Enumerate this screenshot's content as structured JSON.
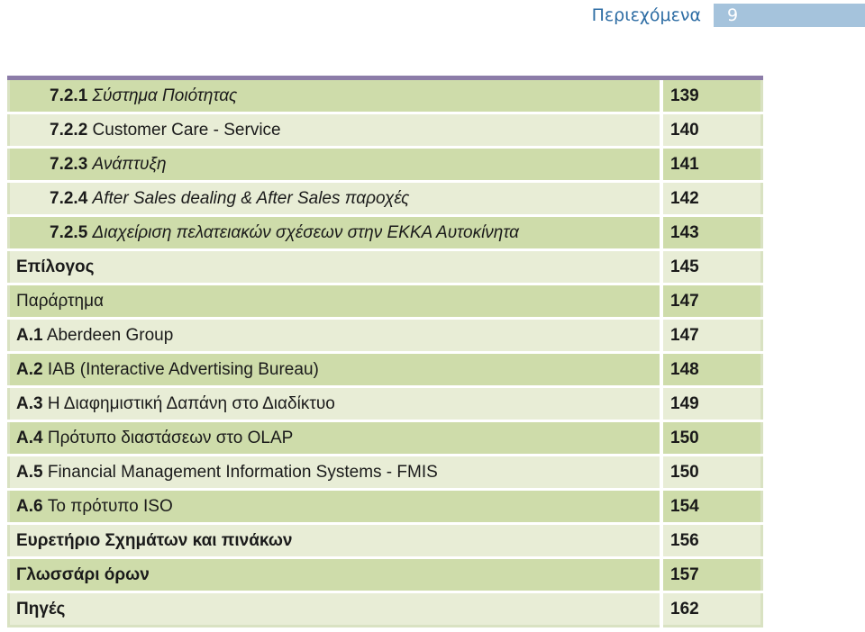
{
  "header": {
    "title": "Περιεχόμενα",
    "page_number": "9",
    "title_color": "#2e6da4",
    "page_box_color": "#a5c3dc"
  },
  "colors": {
    "row_dark": "#cedcaa",
    "row_light": "#e8edd6",
    "table_top_border": "#8c7ca8"
  },
  "toc": [
    {
      "num": "7.2.1",
      "title": "Σύστημα Ποιότητας",
      "page": "139",
      "level": "sub",
      "italic": true
    },
    {
      "num": "7.2.2",
      "title": "Customer Care - Service",
      "page": "140",
      "level": "sub",
      "italic": false
    },
    {
      "num": "7.2.3",
      "title": "Ανάπτυξη",
      "page": "141",
      "level": "sub",
      "italic": true
    },
    {
      "num": "7.2.4",
      "title": "After Sales dealing & After Sales παροχές",
      "page": "142",
      "level": "sub",
      "italic": true
    },
    {
      "num": "7.2.5",
      "title": "Διαχείριση πελατειακών σχέσεων στην ΕΚΚΑ Αυτοκίνητα",
      "page": "143",
      "level": "sub",
      "italic": true
    },
    {
      "num": "",
      "title": "Επίλογος",
      "page": "145",
      "level": "top",
      "bold": true
    },
    {
      "num": "",
      "title": "Παράρτημα",
      "page": "147",
      "level": "top",
      "bold": false
    },
    {
      "num": "A.1",
      "title": "Aberdeen Group",
      "page": "147",
      "level": "top"
    },
    {
      "num": "A.2",
      "title": "IAB (Interactive Advertising Bureau)",
      "page": "148",
      "level": "top"
    },
    {
      "num": "A.3",
      "title": "Η Διαφημιστική Δαπάνη στο Διαδίκτυο",
      "page": "149",
      "level": "top"
    },
    {
      "num": "A.4",
      "title": "Πρότυπο διαστάσεων στο OLAP",
      "page": "150",
      "level": "top"
    },
    {
      "num": "A.5",
      "title": "Financial Management Information Systems - FMIS",
      "page": "150",
      "level": "top"
    },
    {
      "num": "A.6",
      "title": "Το πρότυπο ISO",
      "page": "154",
      "level": "top"
    },
    {
      "num": "",
      "title": "Ευρετήριο Σχημάτων και πινάκων",
      "page": "156",
      "level": "top",
      "bold": true
    },
    {
      "num": "",
      "title": "Γλωσσάρι όρων",
      "page": "157",
      "level": "top",
      "bold": true
    },
    {
      "num": "",
      "title": "Πηγές",
      "page": "162",
      "level": "top",
      "bold": true
    }
  ]
}
